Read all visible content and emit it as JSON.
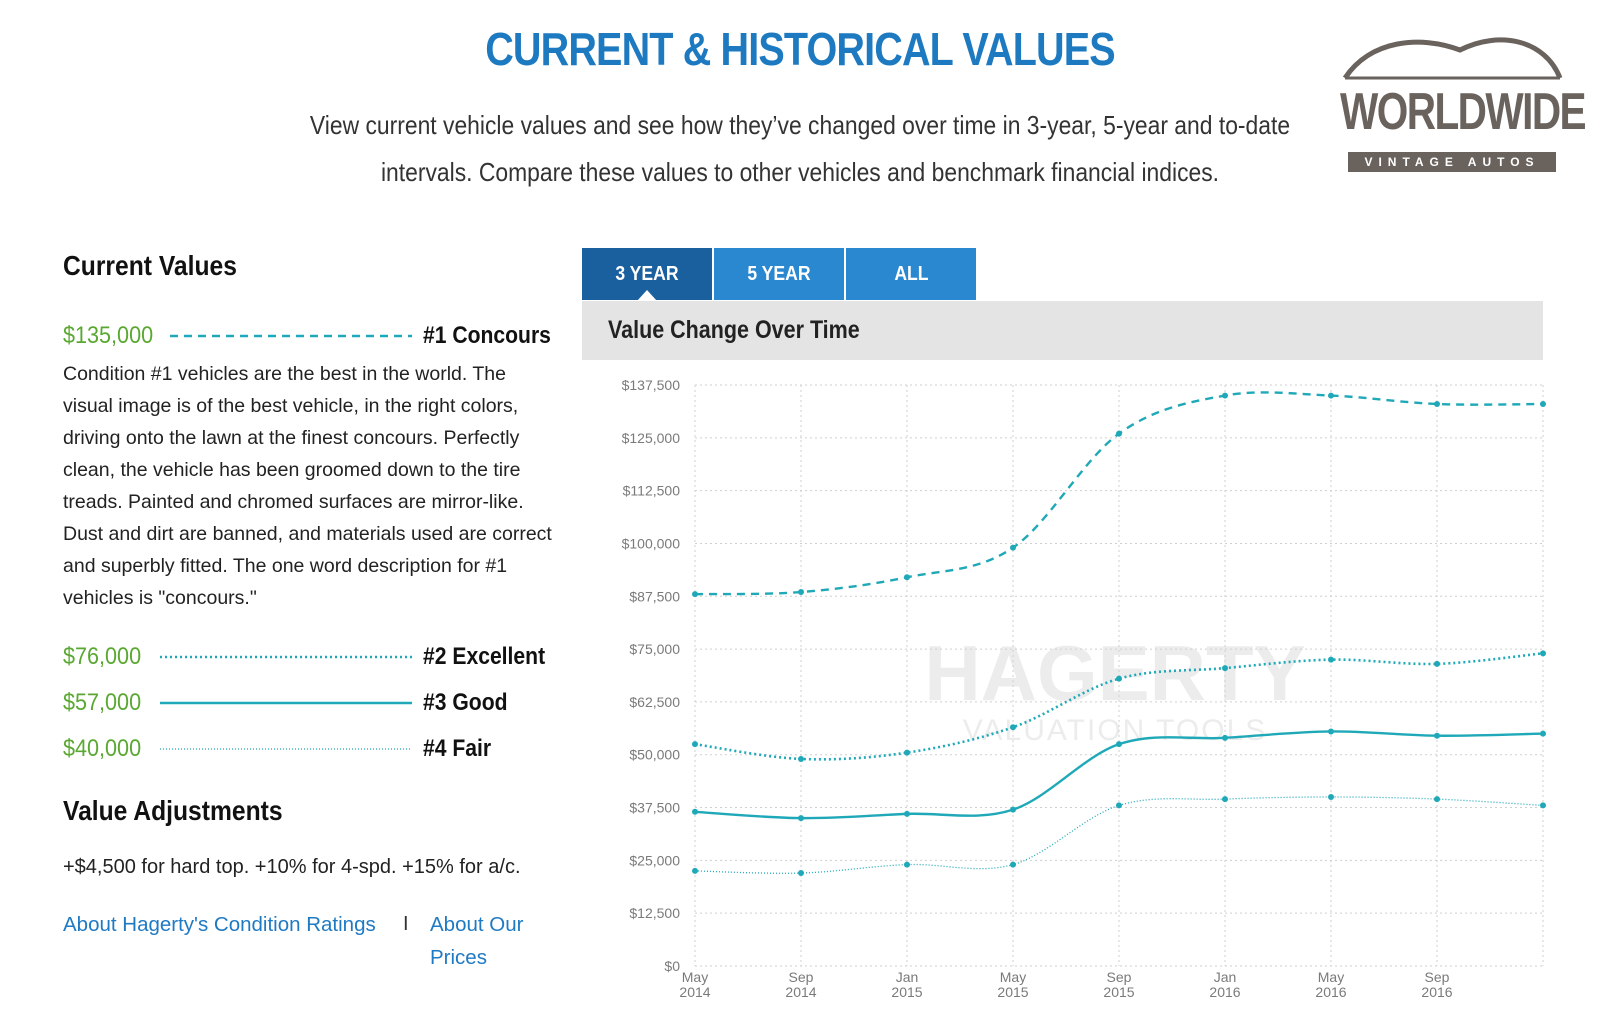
{
  "header": {
    "title": "CURRENT & HISTORICAL VALUES",
    "subtitle_lines": [
      "View current vehicle values and see how they’ve changed over time in 3-year, 5-year and to-date",
      "intervals. Compare these values to other vehicles and benchmark financial indices."
    ]
  },
  "logo": {
    "name": "WORLDWIDE",
    "tagline": "VINTAGE AUTOS"
  },
  "current_values": {
    "heading": "Current Values",
    "amounts": [
      "$135,000",
      "$76,000",
      "$57,000",
      "$40,000"
    ],
    "description": "Condition #1 vehicles are the best in the world. The visual image is of the best vehicle, in the right colors, driving onto the lawn at the finest concours. Perfectly clean, the vehicle has been groomed down to the tire treads. Painted and chromed surfaces are mirror-like. Dust and dirt are banned, and materials used are correct and superbly fitted. The one word description for #1 vehicles is \"concours.\""
  },
  "value_adjustments": {
    "heading": "Value Adjustments",
    "text": "+$4,500 for hard top. +10% for 4-spd. +15% for a/c."
  },
  "links": [
    "About Hagerty's Condition Ratings",
    "I",
    "About Our Prices"
  ],
  "tabs": [
    "3 YEAR",
    "5 YEAR",
    "ALL"
  ],
  "chart_data": {
    "type": "line",
    "title": "Value Change Over Time",
    "watermark": [
      "HAGERTY",
      "VALUATION TOOLS"
    ],
    "categories": [
      "May 2014",
      "Sep 2014",
      "Jan 2015",
      "May 2015",
      "Sep 2015",
      "Jan 2016",
      "May 2016",
      "Sep 2016",
      null
    ],
    "series": [
      {
        "name": "#1 Concours",
        "color": "#1fa9b8",
        "line_style": "dashed",
        "values": [
          88000,
          88500,
          92000,
          99000,
          126000,
          135000,
          135000,
          133000,
          133000
        ]
      },
      {
        "name": "#2 Excellent",
        "color": "#1fa9b8",
        "line_style": "dotted",
        "values": [
          52500,
          49000,
          50500,
          56500,
          68000,
          70500,
          72500,
          71500,
          74000
        ]
      },
      {
        "name": "#3 Good",
        "color": "#1fa9b8",
        "line_style": "solid",
        "values": [
          36500,
          35000,
          36000,
          37000,
          52500,
          54000,
          55500,
          54500,
          55000
        ]
      },
      {
        "name": "#4 Fair",
        "color": "#1fa9b8",
        "line_style": "thin",
        "values": [
          22500,
          22000,
          24000,
          24000,
          38000,
          39500,
          40000,
          39500,
          38000
        ]
      }
    ],
    "ylim": [
      0,
      137500
    ],
    "yticks": [
      {
        "value": 0,
        "label": "$0"
      },
      {
        "value": 12500,
        "label": "$12,500"
      },
      {
        "value": 25000,
        "label": "$25,000"
      },
      {
        "value": 37500,
        "label": "$37,500"
      },
      {
        "value": 50000,
        "label": "$50,000"
      },
      {
        "value": 62500,
        "label": "$62,500"
      },
      {
        "value": 75000,
        "label": "$75,000"
      },
      {
        "value": 87500,
        "label": "$87,500"
      },
      {
        "value": 100000,
        "label": "$100,000"
      },
      {
        "value": 112500,
        "label": "$112,500"
      },
      {
        "value": 125000,
        "label": "$125,000"
      },
      {
        "value": 137500,
        "label": "$137,500"
      }
    ],
    "grid": true
  }
}
